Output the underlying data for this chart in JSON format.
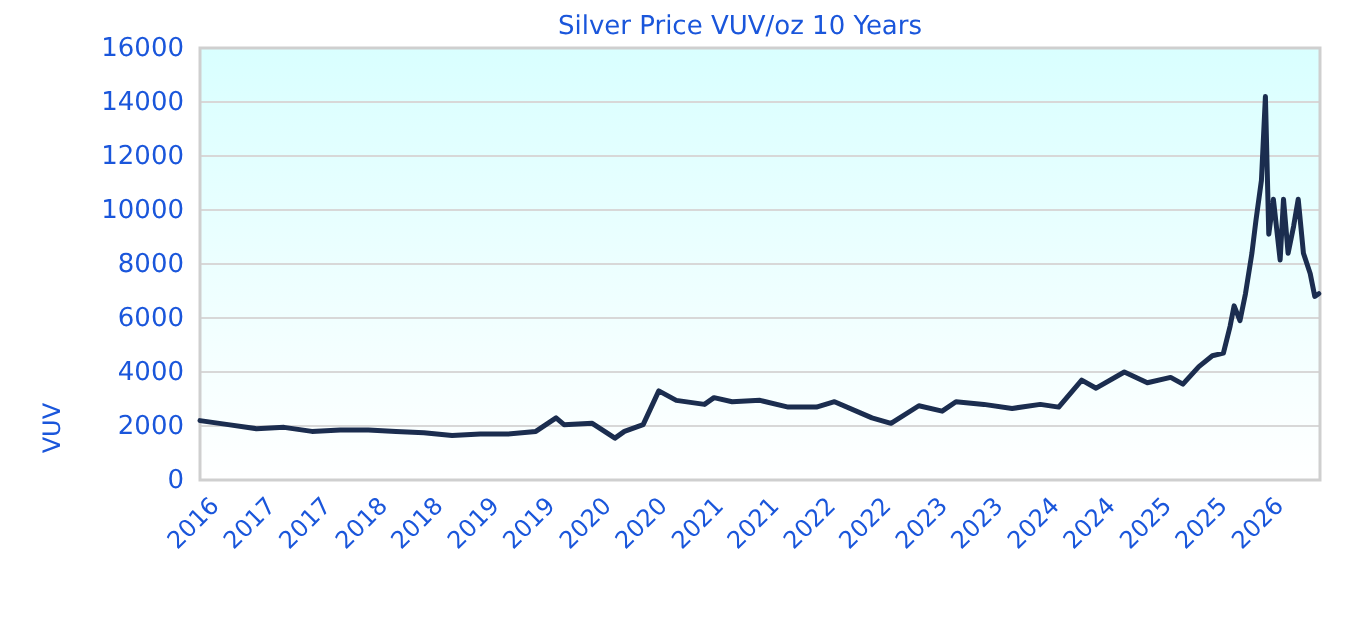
{
  "chart_data": {
    "type": "line",
    "title": "Silver Price VUV/oz 10 Years",
    "ylabel": "VUV",
    "x": [
      "2016-07-01",
      "2016-10-01",
      "2017-01-01",
      "2017-04-01",
      "2017-07-01",
      "2017-10-01",
      "2018-01-01",
      "2018-04-01",
      "2018-07-01",
      "2018-10-01",
      "2019-01-01",
      "2019-04-01",
      "2019-07-01",
      "2019-09-05",
      "2019-10-01",
      "2020-01-01",
      "2020-03-15",
      "2020-04-15",
      "2020-06-15",
      "2020-08-05",
      "2020-10-01",
      "2021-01-01",
      "2021-02-01",
      "2021-04-01",
      "2021-07-01",
      "2021-10-01",
      "2022-01-01",
      "2022-03-01",
      "2022-07-01",
      "2022-09-01",
      "2022-12-01",
      "2023-02-15",
      "2023-04-01",
      "2023-07-01",
      "2023-10-01",
      "2024-01-01",
      "2024-03-01",
      "2024-05-15",
      "2024-07-01",
      "2024-10-01",
      "2024-12-15",
      "2025-03-01",
      "2025-04-10",
      "2025-06-01",
      "2025-07-15",
      "2025-08-20",
      "2025-09-11",
      "2025-09-24",
      "2025-10-13",
      "2025-10-31",
      "2025-11-21",
      "2025-12-04",
      "2025-12-22",
      "2026-01-04",
      "2026-01-15",
      "2026-01-30",
      "2026-02-21",
      "2026-03-04",
      "2026-03-19",
      "2026-04-06",
      "2026-04-21",
      "2026-05-08",
      "2026-05-30",
      "2026-06-14",
      "2026-06-27"
    ],
    "series": [
      {
        "color": "#1b2d4f",
        "values": [
          2200,
          2050,
          1900,
          1950,
          1800,
          1850,
          1850,
          1800,
          1750,
          1650,
          1700,
          1700,
          1800,
          2300,
          2050,
          2100,
          1550,
          1800,
          2050,
          3300,
          2950,
          2800,
          3050,
          2900,
          2950,
          2700,
          2700,
          2900,
          2300,
          2100,
          2750,
          2550,
          2900,
          2800,
          2650,
          2800,
          2700,
          3700,
          3400,
          4000,
          3600,
          3800,
          3550,
          4200,
          4600,
          4700,
          5700,
          6450,
          5900,
          6900,
          8400,
          9600,
          11100,
          14200,
          9100,
          10400,
          8150,
          10400,
          8400,
          9400,
          10400,
          8400,
          7650,
          6800,
          6900
        ]
      }
    ],
    "xlim": [
      "2016-07-01",
      "2026-07-01"
    ],
    "xticks": [
      {
        "value": "2016-07-01",
        "label": "2016"
      },
      {
        "value": "2017-01-01",
        "label": "2017"
      },
      {
        "value": "2017-07-01",
        "label": "2017"
      },
      {
        "value": "2018-01-01",
        "label": "2018"
      },
      {
        "value": "2018-07-01",
        "label": "2018"
      },
      {
        "value": "2019-01-01",
        "label": "2019"
      },
      {
        "value": "2019-07-01",
        "label": "2019"
      },
      {
        "value": "2020-01-01",
        "label": "2020"
      },
      {
        "value": "2020-07-01",
        "label": "2020"
      },
      {
        "value": "2021-01-01",
        "label": "2021"
      },
      {
        "value": "2021-07-01",
        "label": "2021"
      },
      {
        "value": "2022-01-01",
        "label": "2022"
      },
      {
        "value": "2022-07-01",
        "label": "2022"
      },
      {
        "value": "2023-01-01",
        "label": "2023"
      },
      {
        "value": "2023-07-01",
        "label": "2023"
      },
      {
        "value": "2024-01-01",
        "label": "2024"
      },
      {
        "value": "2024-07-01",
        "label": "2024"
      },
      {
        "value": "2025-01-01",
        "label": "2025"
      },
      {
        "value": "2025-07-01",
        "label": "2025"
      },
      {
        "value": "2026-01-01",
        "label": "2026"
      }
    ],
    "ylim": [
      0,
      16000
    ],
    "yticks": [
      0,
      2000,
      4000,
      6000,
      8000,
      10000,
      12000,
      14000,
      16000
    ],
    "grid": "y",
    "marker": "none",
    "line_style": "solid"
  }
}
